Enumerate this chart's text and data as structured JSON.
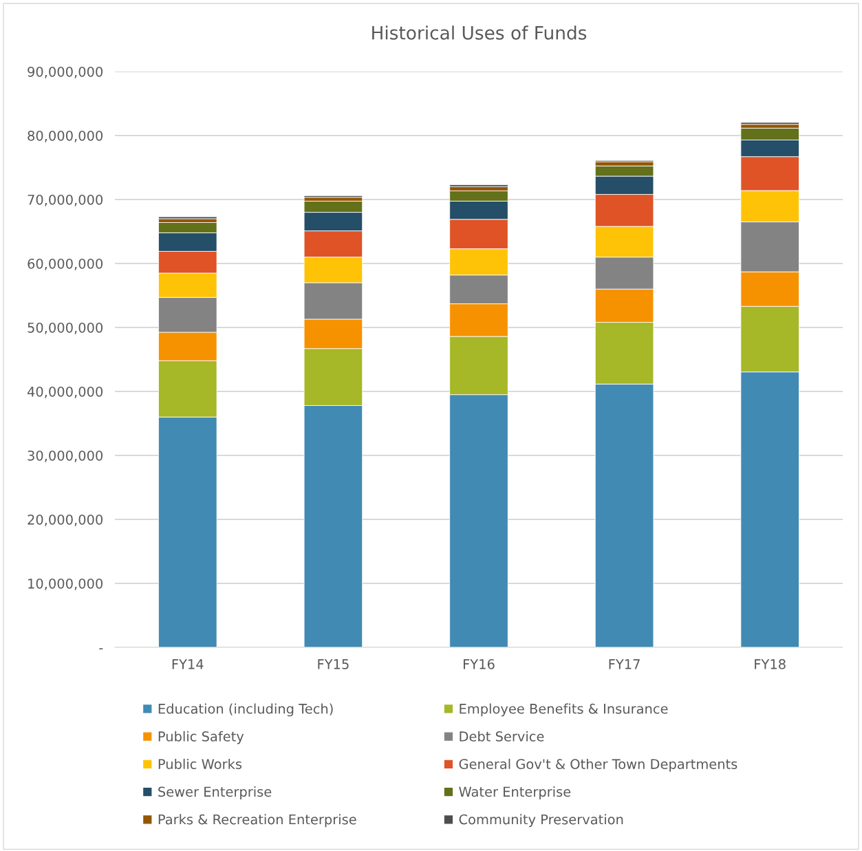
{
  "chart_data": {
    "type": "bar",
    "title": "Historical Uses of Funds",
    "stacked": true,
    "categories": [
      "FY14",
      "FY15",
      "FY16",
      "FY17",
      "FY18"
    ],
    "series": [
      {
        "name": "Education (including Tech)",
        "color": "#418ab3",
        "values": [
          36000000,
          37800000,
          39500000,
          41150000,
          43050000
        ]
      },
      {
        "name": "Employee Benefits & Insurance",
        "color": "#a6b727",
        "values": [
          8800000,
          8900000,
          9100000,
          9650000,
          10250000
        ]
      },
      {
        "name": "Public Safety",
        "color": "#f69200",
        "values": [
          4450000,
          4600000,
          5100000,
          5200000,
          5400000
        ]
      },
      {
        "name": "Debt Service",
        "color": "#838383",
        "values": [
          5450000,
          5700000,
          4500000,
          5000000,
          7800000
        ]
      },
      {
        "name": "Public Works",
        "color": "#fec306",
        "values": [
          3800000,
          4000000,
          4100000,
          4800000,
          4900000
        ]
      },
      {
        "name": "General Gov't & Other Town Departments",
        "color": "#df5327",
        "values": [
          3400000,
          4100000,
          4600000,
          5000000,
          5300000
        ]
      },
      {
        "name": "Sewer Enterprise",
        "color": "#254e68",
        "values": [
          2900000,
          2900000,
          2850000,
          2850000,
          2600000
        ]
      },
      {
        "name": "Water Enterprise",
        "color": "#62711a",
        "values": [
          1600000,
          1750000,
          1600000,
          1600000,
          1850000
        ]
      },
      {
        "name": "Parks & Recreation Enterprise",
        "color": "#945600",
        "values": [
          600000,
          600000,
          650000,
          650000,
          600000
        ]
      },
      {
        "name": "Community Preservation",
        "color": "#4e4e4e",
        "values": [
          300000,
          250000,
          300000,
          200000,
          300000
        ]
      }
    ],
    "ylim": [
      0,
      90000000
    ],
    "yticks": [
      {
        "value": 0,
        "label": "-"
      },
      {
        "value": 10000000,
        "label": "10,000,000"
      },
      {
        "value": 20000000,
        "label": "20,000,000"
      },
      {
        "value": 30000000,
        "label": "30,000,000"
      },
      {
        "value": 40000000,
        "label": "40,000,000"
      },
      {
        "value": 50000000,
        "label": "50,000,000"
      },
      {
        "value": 60000000,
        "label": "60,000,000"
      },
      {
        "value": 70000000,
        "label": "70,000,000"
      },
      {
        "value": 80000000,
        "label": "80,000,000"
      },
      {
        "value": 90000000,
        "label": "90,000,000"
      }
    ],
    "grid": "y",
    "legend": "bottom"
  }
}
